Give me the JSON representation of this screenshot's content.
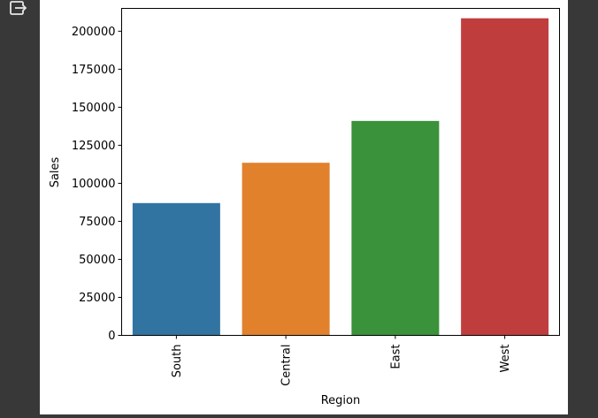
{
  "toolbar": {
    "output_icon": "export-output-icon"
  },
  "colors": {
    "page_background": "#383838",
    "figure_background": "#ffffff",
    "bars": [
      "#3274a1",
      "#e1812c",
      "#3a923a",
      "#c03d3e"
    ]
  },
  "chart_data": {
    "type": "bar",
    "title": "",
    "xlabel": "Region",
    "ylabel": "Sales",
    "categories": [
      "South",
      "Central",
      "East",
      "West"
    ],
    "values": [
      87000,
      113500,
      141000,
      208500
    ],
    "ylim": [
      0,
      215000
    ],
    "yticks": [
      0,
      25000,
      50000,
      75000,
      100000,
      125000,
      150000,
      175000,
      200000
    ],
    "ytick_labels": [
      "0",
      "25000",
      "50000",
      "75000",
      "100000",
      "125000",
      "150000",
      "175000",
      "200000"
    ],
    "grid": false,
    "legend": "none"
  }
}
